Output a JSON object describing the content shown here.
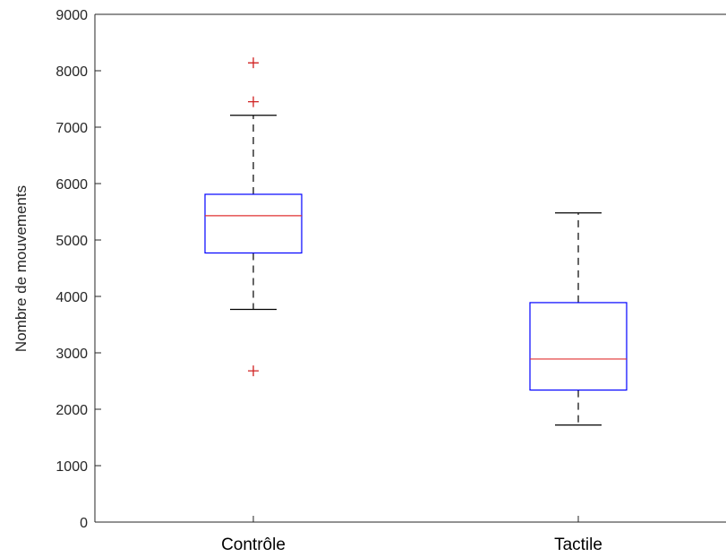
{
  "chart_data": {
    "type": "box",
    "ylabel": "Nombre de mouvements",
    "xlabel": "",
    "title": "",
    "ylim": [
      0,
      9000
    ],
    "yticks": [
      0,
      1000,
      2000,
      3000,
      4000,
      5000,
      6000,
      7000,
      8000,
      9000
    ],
    "grid": false,
    "categories": [
      "Contrôle",
      "Tactile"
    ],
    "boxes": [
      {
        "category": "Contrôle",
        "whisker_low": 3770,
        "q1": 4770,
        "median": 5430,
        "q3": 5810,
        "whisker_high": 7210,
        "outliers": [
          2680,
          7450,
          8140
        ]
      },
      {
        "category": "Tactile",
        "whisker_low": 1720,
        "q1": 2340,
        "median": 2890,
        "q3": 3890,
        "whisker_high": 5480,
        "outliers": []
      }
    ],
    "colors": {
      "box": "#0000ff",
      "median": "#e03030",
      "whisker": "#000000",
      "outlier": "#d02020",
      "axis": "#262626"
    }
  }
}
